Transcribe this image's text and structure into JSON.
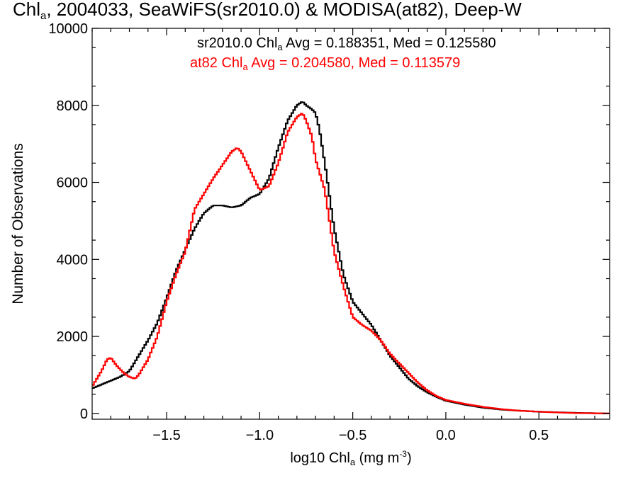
{
  "title": {
    "prefix": "Chl",
    "sub": "a",
    "rest": ", 2004033, SeaWiFS(sr2010.0) & MODISA(at82), Deep-W"
  },
  "annotations": [
    {
      "prefix": "sr2010.0 Chl",
      "sub": "a",
      "rest": " Avg = 0.188351, Med = 0.125580",
      "color": "#000000"
    },
    {
      "prefix": "at82 Chl",
      "sub": "a",
      "rest": " Avg = 0.204580, Med = 0.113579",
      "color": "#ff0000"
    }
  ],
  "axes": {
    "ylabel": "Number of Observations",
    "xlabel_prefix": "log10 Chl",
    "xlabel_sub": "a",
    "xlabel_mid": " (mg m",
    "xlabel_sup": "-3",
    "xlabel_end": ")",
    "xlim": [
      -1.9,
      0.88
    ],
    "ylim": [
      -150,
      10000
    ],
    "xticks": [
      -1.5,
      -1.0,
      -0.5,
      0.0,
      0.5
    ],
    "xtick_labels": [
      "−1.5",
      "−1.0",
      "−0.5",
      "0.0",
      "0.5"
    ],
    "yticks": [
      0,
      2000,
      4000,
      6000,
      8000,
      10000
    ],
    "ytick_labels": [
      "0",
      "2000",
      "4000",
      "6000",
      "8000",
      "10000"
    ]
  },
  "chart_data": {
    "type": "line",
    "xlabel": "log10 Chla (mg m-3)",
    "ylabel": "Number of Observations",
    "xlim": [
      -1.9,
      0.88
    ],
    "ylim": [
      -150,
      10000
    ],
    "grid": false,
    "series": [
      {
        "name": "sr2010.0",
        "color": "#000000",
        "x": [
          -1.9,
          -1.85,
          -1.8,
          -1.75,
          -1.7,
          -1.65,
          -1.6,
          -1.55,
          -1.5,
          -1.45,
          -1.4,
          -1.35,
          -1.3,
          -1.25,
          -1.2,
          -1.15,
          -1.1,
          -1.05,
          -1.0,
          -0.95,
          -0.9,
          -0.85,
          -0.8,
          -0.77,
          -0.75,
          -0.72,
          -0.7,
          -0.68,
          -0.65,
          -0.6,
          -0.55,
          -0.5,
          -0.45,
          -0.4,
          -0.35,
          -0.3,
          -0.25,
          -0.2,
          -0.15,
          -0.1,
          -0.05,
          0.0,
          0.1,
          0.2,
          0.3,
          0.4,
          0.5,
          0.6,
          0.7,
          0.8,
          0.88
        ],
        "values": [
          650,
          750,
          850,
          950,
          1100,
          1500,
          1900,
          2350,
          3000,
          3700,
          4250,
          4800,
          5200,
          5400,
          5400,
          5350,
          5400,
          5600,
          5700,
          6100,
          6900,
          7600,
          8000,
          8100,
          8000,
          7900,
          7800,
          7400,
          6500,
          4800,
          3600,
          2900,
          2600,
          2300,
          1900,
          1500,
          1200,
          900,
          700,
          550,
          430,
          330,
          230,
          150,
          100,
          70,
          45,
          30,
          15,
          5,
          0
        ]
      },
      {
        "name": "at82",
        "color": "#ff0000",
        "x": [
          -1.9,
          -1.85,
          -1.82,
          -1.8,
          -1.77,
          -1.73,
          -1.7,
          -1.67,
          -1.65,
          -1.6,
          -1.55,
          -1.5,
          -1.45,
          -1.4,
          -1.35,
          -1.3,
          -1.25,
          -1.2,
          -1.15,
          -1.12,
          -1.1,
          -1.05,
          -1.0,
          -0.95,
          -0.9,
          -0.85,
          -0.8,
          -0.77,
          -0.75,
          -0.72,
          -0.7,
          -0.65,
          -0.6,
          -0.55,
          -0.5,
          -0.45,
          -0.4,
          -0.35,
          -0.3,
          -0.25,
          -0.2,
          -0.15,
          -0.1,
          -0.05,
          0.0,
          0.1,
          0.2,
          0.3,
          0.4,
          0.5,
          0.6,
          0.7,
          0.8,
          0.88
        ],
        "values": [
          700,
          1100,
          1400,
          1450,
          1250,
          1050,
          950,
          900,
          1000,
          1400,
          2000,
          2900,
          3600,
          4200,
          5300,
          5700,
          6100,
          6450,
          6800,
          6900,
          6800,
          6300,
          5800,
          5900,
          6500,
          7300,
          7700,
          7800,
          7600,
          7200,
          6600,
          5800,
          4200,
          3300,
          2500,
          2300,
          2150,
          1900,
          1550,
          1300,
          1050,
          800,
          600,
          450,
          350,
          250,
          170,
          110,
          70,
          45,
          25,
          10,
          5,
          0
        ]
      }
    ]
  }
}
